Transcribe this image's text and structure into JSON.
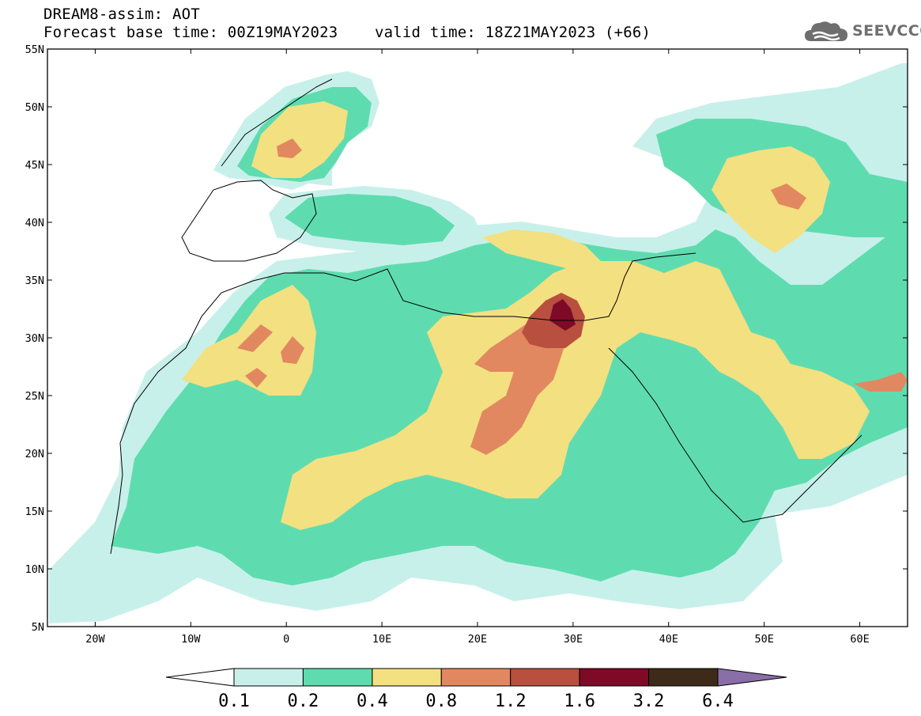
{
  "header": {
    "title_line1": "DREAM8-assim: AOT",
    "title_line2": "Forecast base time: 00Z19MAY2023    valid time: 18Z21MAY2023 (+66)"
  },
  "logo": {
    "text": "SEEVCCC",
    "icon": "cloud-icon"
  },
  "map": {
    "projection": "lat-lon",
    "lon_range": [
      -25,
      65
    ],
    "lat_range": [
      5,
      55
    ],
    "lat_labels": [
      "55N",
      "50N",
      "45N",
      "40N",
      "35N",
      "30N",
      "25N",
      "20N",
      "15N",
      "10N",
      "5N"
    ],
    "lon_labels": [
      "20W",
      "10W",
      "0",
      "10E",
      "20E",
      "30E",
      "40E",
      "50E",
      "60E"
    ]
  },
  "colorbar": {
    "levels": [
      "0.1",
      "0.2",
      "0.4",
      "0.8",
      "1.2",
      "1.6",
      "3.2",
      "6.4"
    ],
    "colors": [
      "#ffffff",
      "#c8f0ea",
      "#5edcb0",
      "#f3e080",
      "#e28860",
      "#b94f3f",
      "#7e0a27",
      "#3e2a18",
      "#8a6ea8"
    ]
  }
}
